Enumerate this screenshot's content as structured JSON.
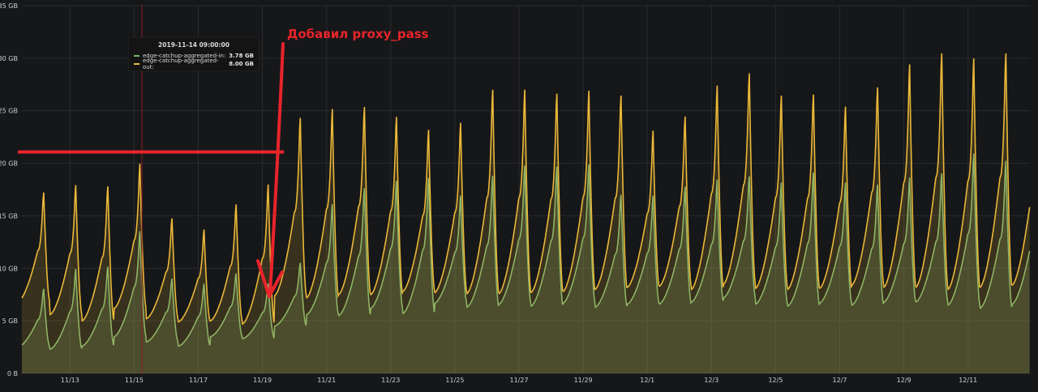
{
  "chart_data": {
    "type": "area",
    "ylim": [
      0,
      35
    ],
    "y_unit": "GB",
    "y_ticks": [
      "0 B",
      "5 GB",
      "10 GB",
      "15 GB",
      "20 GB",
      "25 GB",
      "30 GB",
      "35 GB"
    ],
    "x_range": [
      "2019-11-11 12:00",
      "2019-12-13 00:00"
    ],
    "x_ticks": [
      "11/13",
      "11/15",
      "11/17",
      "11/19",
      "11/21",
      "11/23",
      "11/25",
      "11/27",
      "11/29",
      "12/1",
      "12/3",
      "12/5",
      "12/7",
      "12/9",
      "12/11"
    ],
    "grid": true,
    "series": [
      {
        "name": "edge-catchup-aggregated-in",
        "color": "#7eb26d",
        "daily_min": [
          2.5,
          2.3,
          2.6,
          3.5,
          3.0,
          2.6,
          3.5,
          3.3,
          4.5,
          5.6,
          5.5,
          6.2,
          5.7,
          6.7,
          6.3,
          6.6,
          6.4,
          6.7,
          6.3,
          6.6,
          6.6,
          6.8,
          7.2,
          6.6,
          6.4,
          6.7,
          6.5,
          6.8,
          6.8,
          6.5,
          6.2,
          6.6
        ],
        "daily_peak": [
          8.3,
          10.3,
          10.5,
          14.0,
          9.3,
          8.8,
          9.8,
          8.8,
          10.8,
          16.6,
          18.2,
          18.9,
          19.2,
          17.4,
          19.4,
          20.4,
          20.3,
          20.5,
          17.5,
          17.4,
          18.3,
          19.0,
          19.3,
          18.7,
          19.7,
          18.7,
          18.5,
          19.2,
          19.6,
          21.6,
          20.9,
          20.4
        ]
      },
      {
        "name": "edge-catchup-aggregated-out",
        "color": "#eab839",
        "daily_min": [
          6.8,
          5.6,
          5.0,
          6.2,
          5.2,
          4.9,
          5.0,
          4.7,
          7.4,
          7.2,
          7.5,
          7.5,
          7.8,
          7.7,
          7.6,
          7.6,
          7.7,
          7.8,
          8.0,
          8.2,
          8.3,
          8.0,
          8.5,
          8.1,
          8.0,
          8.1,
          8.4,
          8.2,
          8.2,
          8.0,
          8.2,
          8.4
        ],
        "daily_peak": [
          17.7,
          18.5,
          18.4,
          20.6,
          15.2,
          14.1,
          16.6,
          18.6,
          25.1,
          26.0,
          26.2,
          25.2,
          23.9,
          24.6,
          27.9,
          27.9,
          27.5,
          27.8,
          27.3,
          23.8,
          25.2,
          28.3,
          29.5,
          27.3,
          27.4,
          26.2,
          28.1,
          30.4,
          31.5,
          31.0,
          31.5,
          28.7
        ]
      }
    ]
  },
  "tooltip": {
    "time": "2019-11-14 09:00:00",
    "rows": [
      {
        "name": "edge-catchup-aggregated-in:",
        "value": "3.78 GB"
      },
      {
        "name": "edge-catchup-aggregated-out:",
        "value": "8.00 GB"
      }
    ]
  },
  "annotation": {
    "text": "Добавил proxy_pass",
    "color": "#e8242b",
    "threshold_value": 21
  }
}
